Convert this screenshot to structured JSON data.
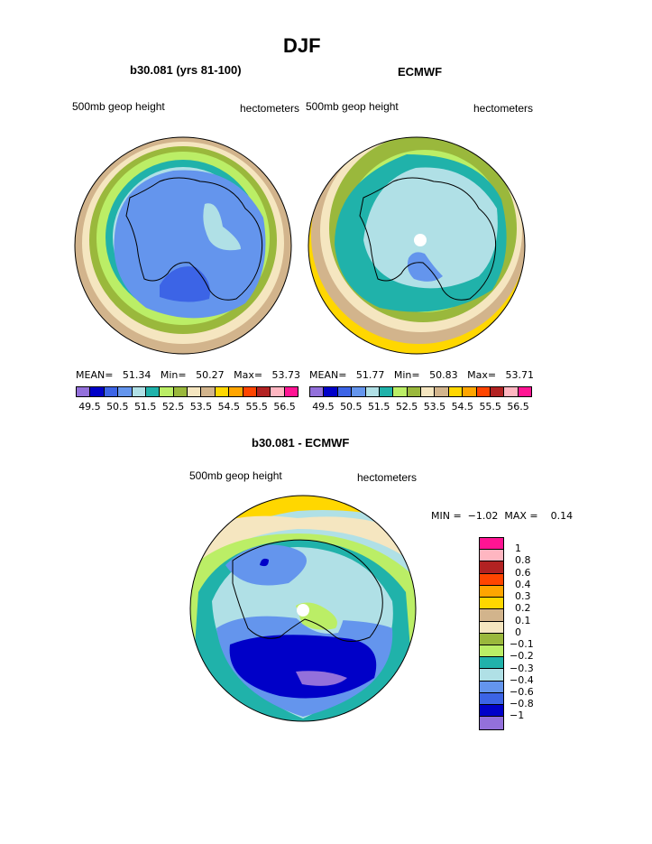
{
  "page": {
    "title": "DJF",
    "panel1": {
      "title": "b30.081 (yrs 81-100)",
      "left_label": "500mb geop height",
      "right_label": "hectometers",
      "stats": "MEAN=   51.34   Min=   50.27   Max=   53.73"
    },
    "panel2": {
      "title": "ECMWF",
      "left_label": "500mb geop height",
      "right_label": "hectometers",
      "stats": "MEAN=   51.77   Min=   50.83   Max=   53.71"
    },
    "panel3": {
      "title": "b30.081 - ECMWF",
      "left_label": "500mb geop height",
      "right_label": "hectometers",
      "stats": "MIN =  −1.02  MAX =    0.14"
    }
  },
  "colorbar_main": {
    "colors": [
      "#9370db",
      "#0000c8",
      "#3c64e6",
      "#6495ed",
      "#b0e0e6",
      "#20b2aa",
      "#bbee66",
      "#9ab83c",
      "#f5e6c0",
      "#d2b48c",
      "#ffd700",
      "#ffa500",
      "#ff4500",
      "#b22222",
      "#ffb6c1",
      "#ff1493"
    ],
    "labels": [
      "49.5",
      "50.5",
      "51.5",
      "52.5",
      "53.5",
      "54.5",
      "55.5",
      "56.5"
    ]
  },
  "colorbar_diff": {
    "colors": [
      "#ff1493",
      "#ffb6c1",
      "#b22222",
      "#ff4500",
      "#ffa500",
      "#ffd700",
      "#d2b48c",
      "#f5e6c0",
      "#9ab83c",
      "#bbee66",
      "#20b2aa",
      "#b0e0e6",
      "#6495ed",
      "#3c64e6",
      "#0000c8",
      "#9370db"
    ],
    "labels": [
      "1",
      "0.8",
      "0.6",
      "0.4",
      "0.3",
      "0.2",
      "0.1",
      "0",
      "−0.1",
      "−0.2",
      "−0.3",
      "−0.4",
      "−0.6",
      "−0.8",
      "−1"
    ]
  }
}
